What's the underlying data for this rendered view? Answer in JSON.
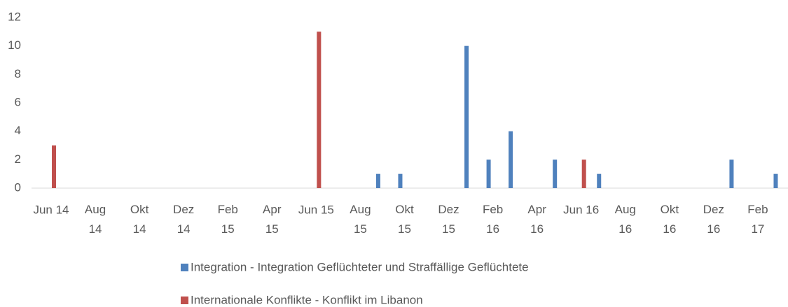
{
  "chart_data": {
    "type": "bar",
    "categories": [
      "Jun 14",
      null,
      "Aug 14",
      null,
      "Okt 14",
      null,
      "Dez 14",
      null,
      "Feb 15",
      null,
      "Apr 15",
      null,
      "Jun 15",
      null,
      "Aug 15",
      null,
      "Okt 15",
      null,
      "Dez 15",
      null,
      "Feb 16",
      null,
      "Apr 16",
      null,
      "Jun 16",
      null,
      "Aug 16",
      null,
      "Okt 16",
      null,
      "Dez 16",
      null,
      "Feb 17",
      null
    ],
    "series": [
      {
        "name": "Integration - Integration Geflüchteter und Straffällige Geflüchtete",
        "color": "#4f81bd",
        "values": [
          0,
          0,
          0,
          0,
          0,
          0,
          0,
          0,
          0,
          0,
          0,
          0,
          0,
          0,
          0,
          1,
          1,
          0,
          0,
          10,
          2,
          4,
          0,
          2,
          0,
          1,
          0,
          0,
          0,
          0,
          0,
          2,
          0,
          1
        ]
      },
      {
        "name": "Internationale Konflikte - Konflikt im Libanon",
        "color": "#c0504d",
        "values": [
          3,
          0,
          0,
          0,
          0,
          0,
          0,
          0,
          0,
          0,
          0,
          0,
          11,
          0,
          0,
          0,
          0,
          0,
          0,
          0,
          0,
          0,
          0,
          0,
          2,
          0,
          0,
          0,
          0,
          0,
          0,
          0,
          0,
          0
        ]
      }
    ],
    "ylim": [
      0,
      12
    ],
    "yticks": [
      0,
      2,
      4,
      6,
      8,
      10,
      12
    ],
    "grid": false
  }
}
